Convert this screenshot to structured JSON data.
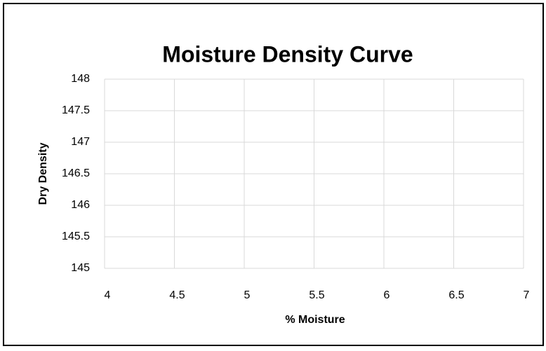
{
  "chart_data": {
    "type": "scatter",
    "title": "Moisture Density Curve",
    "x_label": "% Moisture",
    "y_label": "Dry Density",
    "xlim": [
      4,
      7
    ],
    "xticks": [
      4,
      4.5,
      5,
      5.5,
      6,
      6.5,
      7
    ],
    "ylim": [
      145,
      148
    ],
    "yticks": [
      145,
      145.5,
      146,
      146.5,
      147,
      147.5,
      148
    ],
    "grid": true,
    "series": []
  }
}
